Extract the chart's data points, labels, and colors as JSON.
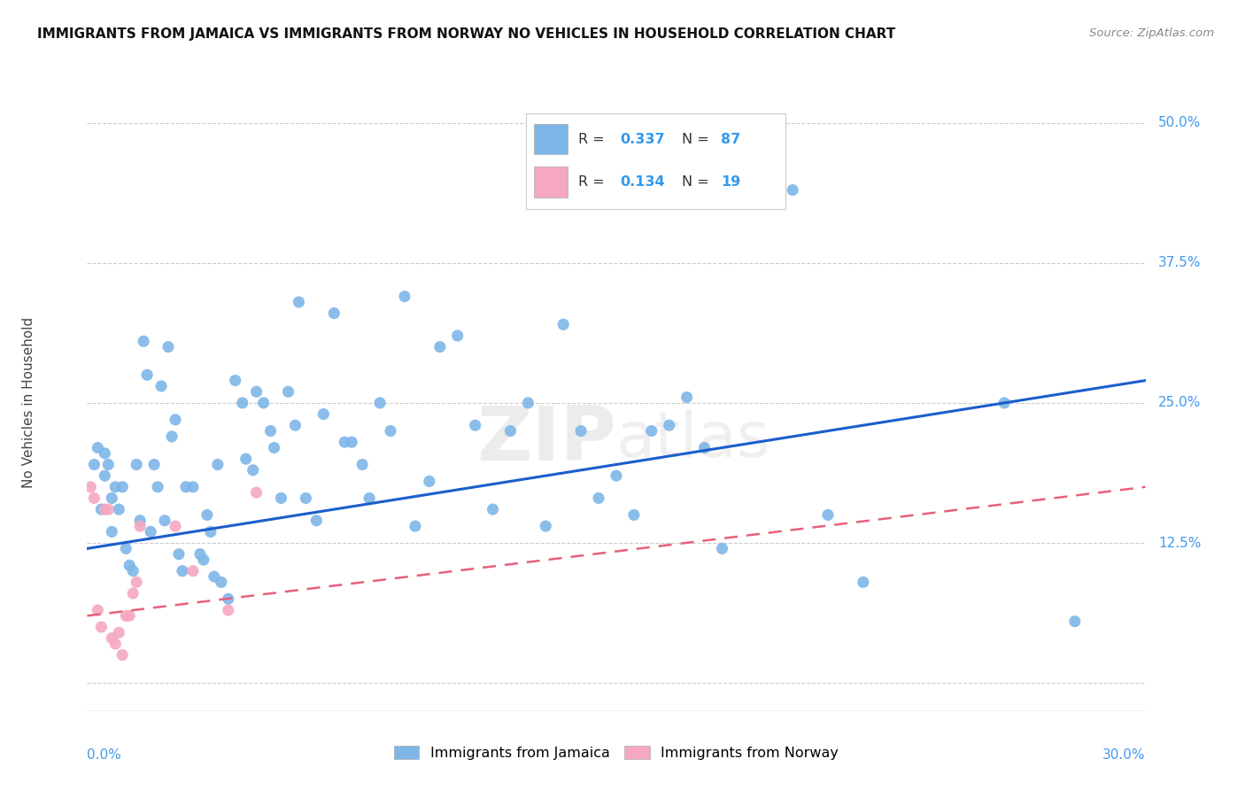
{
  "title": "IMMIGRANTS FROM JAMAICA VS IMMIGRANTS FROM NORWAY NO VEHICLES IN HOUSEHOLD CORRELATION CHART",
  "source": "Source: ZipAtlas.com",
  "ylabel": "No Vehicles in Household",
  "legend_jamaica": {
    "R": "0.337",
    "N": "87",
    "label": "Immigrants from Jamaica"
  },
  "legend_norway": {
    "R": "0.134",
    "N": "19",
    "label": "Immigrants from Norway"
  },
  "color_jamaica": "#7EB6E8",
  "color_norway": "#F5A8C0",
  "trendline_jamaica_color": "#1A5ECC",
  "trendline_norway_color": "#E8607A",
  "background_color": "#FFFFFF",
  "watermark": "ZIPatlas",
  "xlim": [
    0.0,
    0.3
  ],
  "ylim": [
    -0.025,
    0.525
  ],
  "jamaica_x": [
    0.002,
    0.003,
    0.004,
    0.005,
    0.005,
    0.006,
    0.007,
    0.007,
    0.008,
    0.009,
    0.01,
    0.011,
    0.012,
    0.013,
    0.014,
    0.015,
    0.016,
    0.017,
    0.018,
    0.019,
    0.02,
    0.021,
    0.022,
    0.023,
    0.024,
    0.025,
    0.026,
    0.027,
    0.028,
    0.03,
    0.032,
    0.033,
    0.034,
    0.035,
    0.036,
    0.037,
    0.038,
    0.04,
    0.042,
    0.044,
    0.045,
    0.047,
    0.048,
    0.05,
    0.052,
    0.053,
    0.055,
    0.057,
    0.059,
    0.06,
    0.062,
    0.065,
    0.067,
    0.07,
    0.073,
    0.075,
    0.078,
    0.08,
    0.083,
    0.086,
    0.09,
    0.093,
    0.097,
    0.1,
    0.105,
    0.11,
    0.115,
    0.12,
    0.125,
    0.13,
    0.135,
    0.14,
    0.145,
    0.15,
    0.155,
    0.16,
    0.165,
    0.17,
    0.175,
    0.18,
    0.185,
    0.19,
    0.2,
    0.21,
    0.22,
    0.26,
    0.28
  ],
  "jamaica_y": [
    0.195,
    0.21,
    0.155,
    0.185,
    0.205,
    0.195,
    0.135,
    0.165,
    0.175,
    0.155,
    0.175,
    0.12,
    0.105,
    0.1,
    0.195,
    0.145,
    0.305,
    0.275,
    0.135,
    0.195,
    0.175,
    0.265,
    0.145,
    0.3,
    0.22,
    0.235,
    0.115,
    0.1,
    0.175,
    0.175,
    0.115,
    0.11,
    0.15,
    0.135,
    0.095,
    0.195,
    0.09,
    0.075,
    0.27,
    0.25,
    0.2,
    0.19,
    0.26,
    0.25,
    0.225,
    0.21,
    0.165,
    0.26,
    0.23,
    0.34,
    0.165,
    0.145,
    0.24,
    0.33,
    0.215,
    0.215,
    0.195,
    0.165,
    0.25,
    0.225,
    0.345,
    0.14,
    0.18,
    0.3,
    0.31,
    0.23,
    0.155,
    0.225,
    0.25,
    0.14,
    0.32,
    0.225,
    0.165,
    0.185,
    0.15,
    0.225,
    0.23,
    0.255,
    0.21,
    0.12,
    0.49,
    0.435,
    0.44,
    0.15,
    0.09,
    0.25,
    0.055
  ],
  "norway_x": [
    0.001,
    0.002,
    0.003,
    0.004,
    0.005,
    0.006,
    0.007,
    0.008,
    0.009,
    0.01,
    0.011,
    0.012,
    0.013,
    0.014,
    0.015,
    0.025,
    0.03,
    0.04,
    0.048
  ],
  "norway_y": [
    0.175,
    0.165,
    0.065,
    0.05,
    0.155,
    0.155,
    0.04,
    0.035,
    0.045,
    0.025,
    0.06,
    0.06,
    0.08,
    0.09,
    0.14,
    0.14,
    0.1,
    0.065,
    0.17
  ],
  "jamaica_trend_x": [
    0.0,
    0.3
  ],
  "jamaica_trend_y": [
    0.12,
    0.27
  ],
  "norway_trend_x": [
    0.0,
    0.3
  ],
  "norway_trend_y": [
    0.06,
    0.175
  ]
}
